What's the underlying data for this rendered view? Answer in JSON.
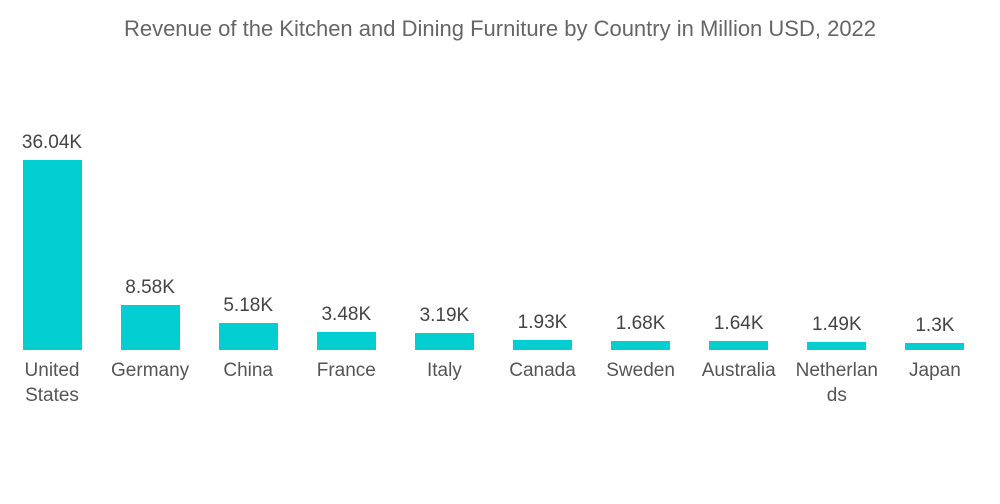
{
  "chart_data": {
    "type": "bar",
    "title": "Revenue of the Kitchen and Dining Furniture by Country in Million USD, 2022",
    "categories": [
      "United States",
      "Germany",
      "China",
      "France",
      "Italy",
      "Canada",
      "Sweden",
      "Australia",
      "Netherlands",
      "Japan"
    ],
    "values": [
      36040,
      8580,
      5180,
      3480,
      3190,
      1930,
      1680,
      1640,
      1490,
      1300
    ],
    "data_labels": [
      "36.04K",
      "8.58K",
      "5.18K",
      "3.48K",
      "3.19K",
      "1.93K",
      "1.68K",
      "1.64K",
      "1.49K",
      "1.3K"
    ],
    "xlabel": "",
    "ylabel": "",
    "ylim": [
      0,
      36040
    ],
    "grid": false,
    "colors": {
      "bar": "#00CED1"
    }
  }
}
